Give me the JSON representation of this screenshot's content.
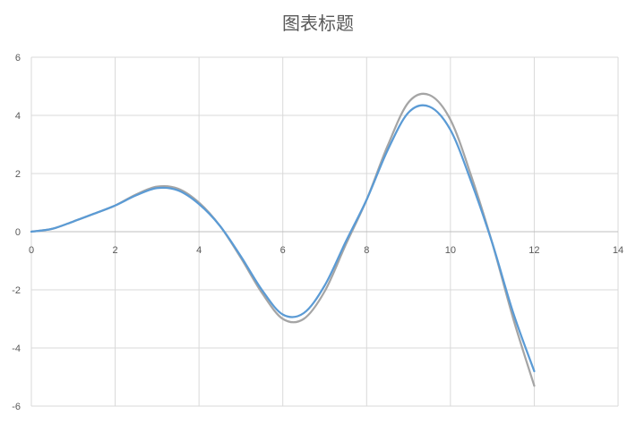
{
  "chart_data": {
    "type": "scatter",
    "title": "图表标题",
    "xlabel": "",
    "ylabel": "",
    "xlim": [
      0,
      14
    ],
    "ylim": [
      -6,
      6
    ],
    "x_ticks": [
      "0",
      "2",
      "4",
      "6",
      "8",
      "10",
      "12",
      "14"
    ],
    "y_ticks": [
      "6",
      "4",
      "2",
      "0",
      "-2",
      "-4",
      "-6"
    ],
    "grid": true,
    "series": [
      {
        "color": "#5b9bd5",
        "x": [
          0,
          0.5,
          1,
          1.5,
          2,
          2.5,
          3,
          3.5,
          4,
          4.5,
          5,
          5.5,
          6,
          6.5,
          7,
          7.5,
          8,
          8.5,
          9,
          9.5,
          10,
          10.5,
          11,
          11.5,
          12
        ],
        "y": [
          0,
          0.1,
          0.35,
          0.62,
          0.9,
          1.25,
          1.5,
          1.42,
          0.95,
          0.2,
          -0.85,
          -2.0,
          -2.85,
          -2.8,
          -1.85,
          -0.35,
          1.1,
          2.8,
          4.1,
          4.3,
          3.5,
          1.7,
          -0.4,
          -2.8,
          -4.8
        ]
      },
      {
        "color": "#a5a5a5",
        "x": [
          0,
          0.5,
          1,
          1.5,
          2,
          2.5,
          3,
          3.5,
          4,
          4.5,
          5,
          5.5,
          6,
          6.5,
          7,
          7.5,
          8,
          8.5,
          9,
          9.5,
          10,
          10.5,
          11,
          11.5,
          12
        ],
        "y": [
          0,
          0.1,
          0.35,
          0.62,
          0.9,
          1.28,
          1.55,
          1.48,
          1.0,
          0.2,
          -0.9,
          -2.1,
          -3.0,
          -3.0,
          -2.05,
          -0.45,
          1.1,
          2.95,
          4.45,
          4.7,
          3.85,
          1.9,
          -0.4,
          -3.0,
          -5.3
        ]
      }
    ]
  }
}
